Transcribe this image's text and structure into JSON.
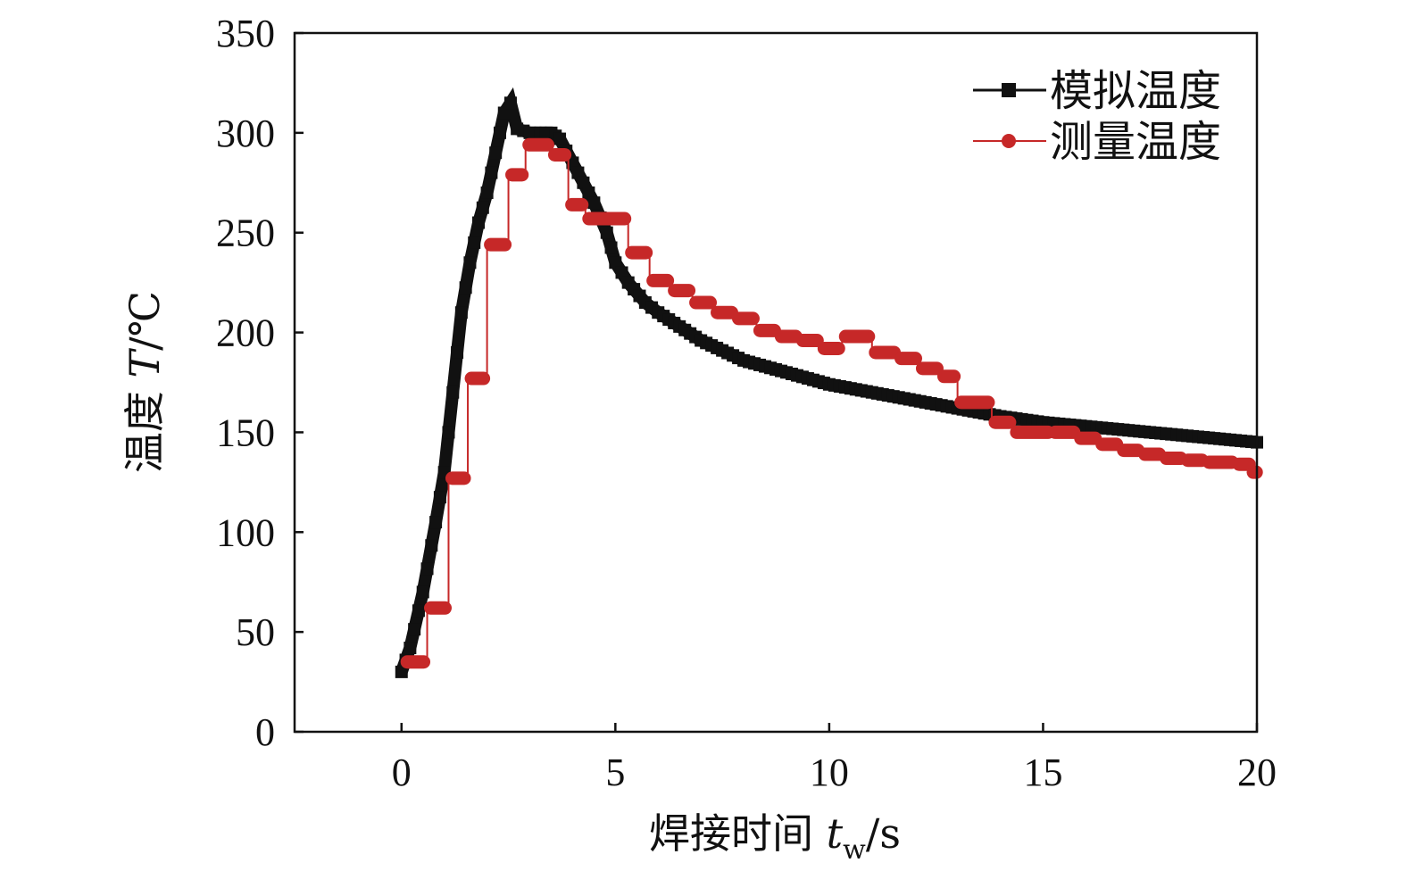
{
  "chart_data": {
    "type": "line",
    "title": "",
    "xlabel": {
      "prefix": "焊接时间 ",
      "var": "t",
      "sub": "w",
      "unit": "/s"
    },
    "ylabel": {
      "prefix": "温度 ",
      "var": "T",
      "unit": "/℃"
    },
    "xlim": [
      -2.5,
      20
    ],
    "ylim": [
      0,
      350
    ],
    "xticks": [
      0,
      5,
      10,
      15,
      20
    ],
    "yticks": [
      0,
      50,
      100,
      150,
      200,
      250,
      300,
      350
    ],
    "grid": false,
    "legend_position": "top-right",
    "series": [
      {
        "name": "模拟温度",
        "color": "#111111",
        "marker": "square",
        "x": [
          0,
          0.2,
          0.5,
          0.8,
          1.0,
          1.2,
          1.4,
          1.6,
          1.8,
          2.0,
          2.2,
          2.4,
          2.55,
          2.7,
          3.0,
          3.5,
          3.7,
          4.0,
          4.5,
          4.8,
          5.0,
          5.3,
          5.7,
          6.0,
          6.5,
          7.0,
          7.5,
          8.0,
          9.0,
          10.0,
          11.0,
          12.0,
          13.0,
          14.0,
          15.0,
          16.0,
          17.0,
          18.0,
          19.0,
          20.0
        ],
        "y": [
          30,
          42,
          70,
          105,
          130,
          170,
          210,
          235,
          255,
          270,
          290,
          310,
          315,
          302,
          300,
          300,
          297,
          285,
          265,
          250,
          235,
          225,
          215,
          210,
          203,
          196,
          191,
          186,
          180,
          174,
          170,
          166,
          162,
          158,
          155,
          153,
          151,
          149,
          147,
          145
        ]
      },
      {
        "name": "测量温度",
        "color": "#c62828",
        "marker": "circle",
        "steps": [
          [
            0.05,
            0.6,
            35
          ],
          [
            0.6,
            1.1,
            62
          ],
          [
            1.1,
            1.55,
            127
          ],
          [
            1.55,
            2.0,
            177
          ],
          [
            2.0,
            2.5,
            244
          ],
          [
            2.5,
            2.9,
            279
          ],
          [
            2.9,
            3.5,
            294
          ],
          [
            3.5,
            3.9,
            289
          ],
          [
            3.9,
            4.3,
            264
          ],
          [
            4.3,
            5.3,
            257
          ],
          [
            5.3,
            5.8,
            240
          ],
          [
            5.8,
            6.3,
            226
          ],
          [
            6.3,
            6.8,
            221
          ],
          [
            6.8,
            7.3,
            215
          ],
          [
            7.3,
            7.8,
            210
          ],
          [
            7.8,
            8.3,
            207
          ],
          [
            8.3,
            8.8,
            201
          ],
          [
            8.8,
            9.3,
            198
          ],
          [
            9.3,
            9.8,
            196
          ],
          [
            9.8,
            10.3,
            192
          ],
          [
            10.3,
            11.0,
            198
          ],
          [
            11.0,
            11.6,
            190
          ],
          [
            11.6,
            12.1,
            187
          ],
          [
            12.1,
            12.6,
            182
          ],
          [
            12.6,
            13.0,
            178
          ],
          [
            13.0,
            13.8,
            165
          ],
          [
            13.8,
            14.3,
            155
          ],
          [
            14.3,
            15.2,
            150
          ],
          [
            15.2,
            15.8,
            150
          ],
          [
            15.8,
            16.3,
            147
          ],
          [
            16.3,
            16.8,
            144
          ],
          [
            16.8,
            17.3,
            141
          ],
          [
            17.3,
            17.8,
            139
          ],
          [
            17.8,
            18.3,
            137
          ],
          [
            18.3,
            18.8,
            136
          ],
          [
            18.8,
            19.5,
            135
          ],
          [
            19.5,
            19.9,
            134
          ],
          [
            19.9,
            20.0,
            130
          ]
        ]
      }
    ]
  }
}
